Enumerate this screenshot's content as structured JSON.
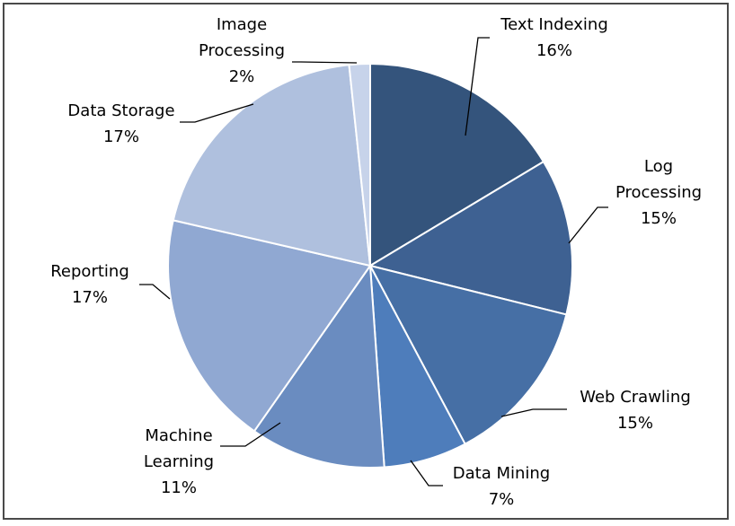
{
  "chart_data": {
    "type": "pie",
    "title": "",
    "slices": [
      {
        "lines": [
          "Text Indexing"
        ],
        "value": 16,
        "pct_label": "16%",
        "color": "#34547c"
      },
      {
        "lines": [
          "Log",
          "Processing"
        ],
        "value": 15,
        "pct_label": "15%",
        "color": "#3e6192"
      },
      {
        "lines": [
          "Web Crawling"
        ],
        "value": 15,
        "pct_label": "15%",
        "color": "#466fa5"
      },
      {
        "lines": [
          "Data Mining"
        ],
        "value": 7,
        "pct_label": "7%",
        "color": "#4e7dbb"
      },
      {
        "lines": [
          "Machine",
          "Learning"
        ],
        "value": 11,
        "pct_label": "11%",
        "color": "#6a8cc0"
      },
      {
        "lines": [
          "Reporting"
        ],
        "value": 17,
        "pct_label": "17%",
        "color": "#90a8d2"
      },
      {
        "lines": [
          "Data Storage"
        ],
        "value": 17,
        "pct_label": "17%",
        "color": "#afc0de"
      },
      {
        "lines": [
          "Image",
          "Processing"
        ],
        "value": 2,
        "pct_label": "2%",
        "color": "#c7d3ea"
      }
    ]
  }
}
